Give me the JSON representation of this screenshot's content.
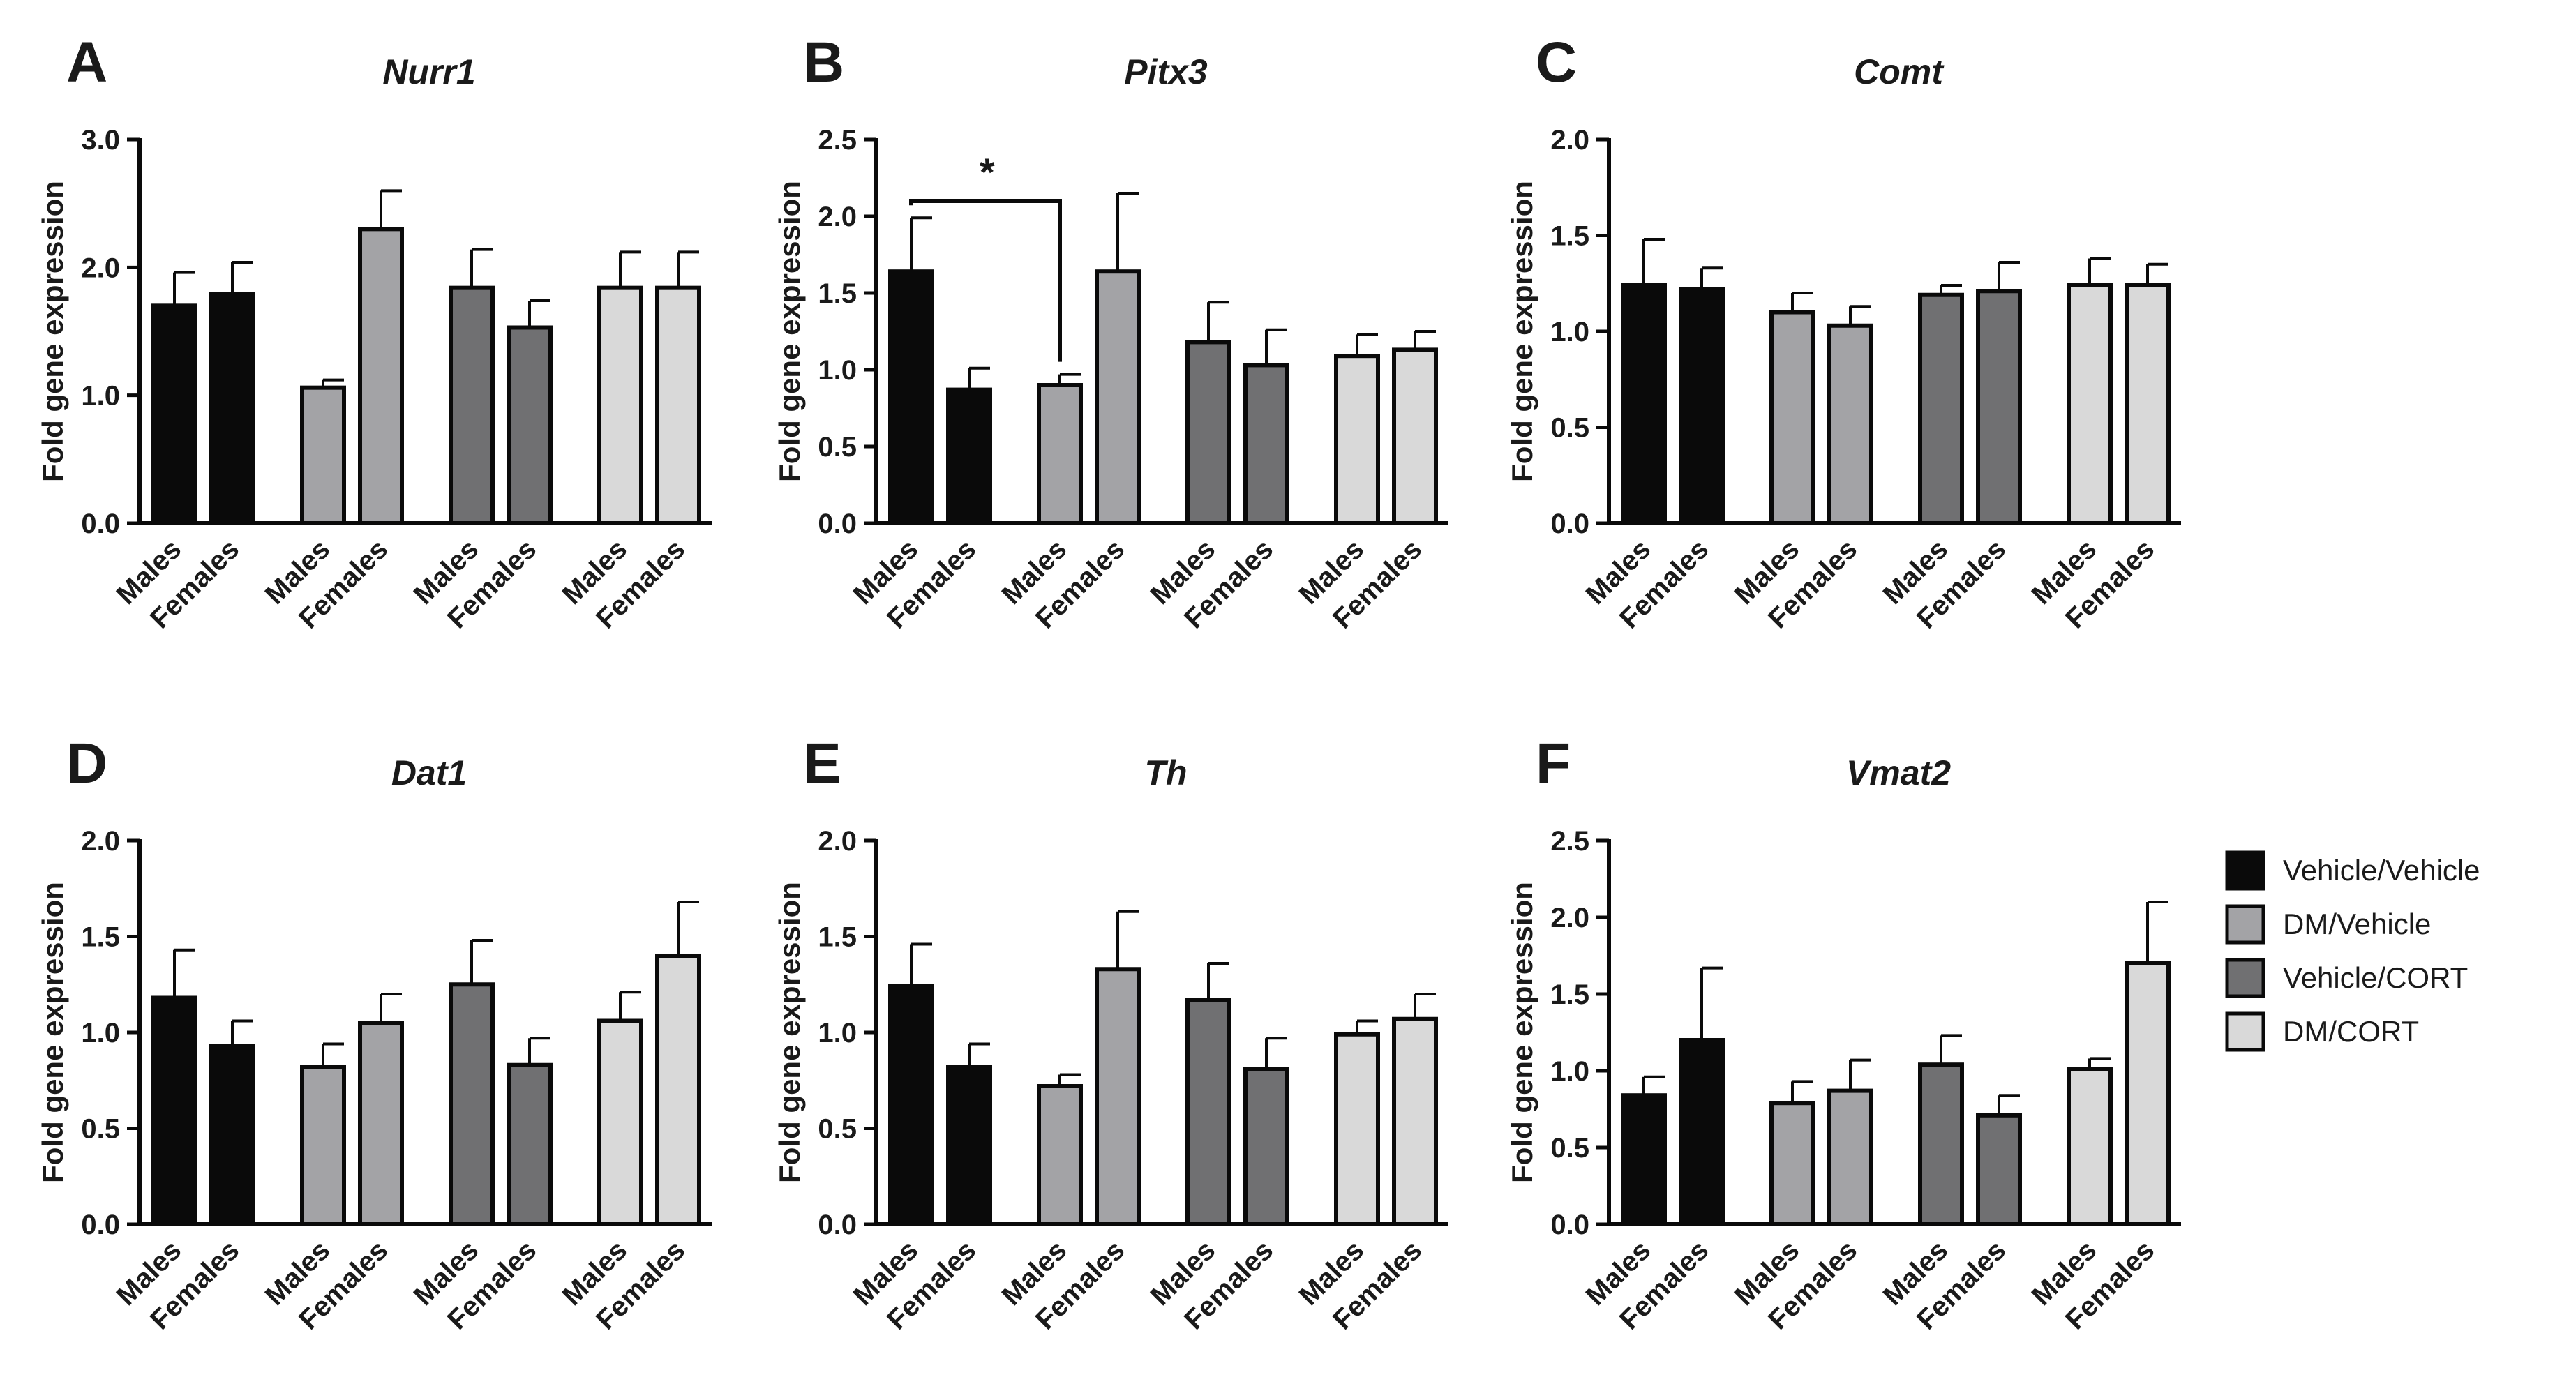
{
  "colors": {
    "Vehicle/Vehicle": "#0a0a0a",
    "DM/Vehicle": "#a3a3a6",
    "Vehicle/CORT": "#707072",
    "DM/CORT": "#d9d9d9"
  },
  "legend": [
    {
      "label": "Vehicle/Vehicle",
      "color": "#0a0a0a"
    },
    {
      "label": "DM/Vehicle",
      "color": "#a3a3a6"
    },
    {
      "label": "Vehicle/CORT",
      "color": "#707072"
    },
    {
      "label": "DM/CORT",
      "color": "#d9d9d9"
    }
  ],
  "chart_data": [
    {
      "type": "bar",
      "letter": "A",
      "title": "Nurr1",
      "ylabel": "Fold gene expression",
      "ylim": [
        0,
        3
      ],
      "yticks": [
        0,
        1,
        2,
        3
      ],
      "ytick_labels": [
        "0.0",
        "1.0",
        "2.0",
        "3.0"
      ],
      "categories": [
        "Males",
        "Females",
        "Males",
        "Females",
        "Males",
        "Females",
        "Males",
        "Females"
      ],
      "groups": [
        "Vehicle/Vehicle",
        "Vehicle/Vehicle",
        "DM/Vehicle",
        "DM/Vehicle",
        "Vehicle/CORT",
        "Vehicle/CORT",
        "DM/CORT",
        "DM/CORT"
      ],
      "values": [
        1.7,
        1.79,
        1.06,
        2.3,
        1.84,
        1.53,
        1.84,
        1.84
      ],
      "errors": [
        0.26,
        0.25,
        0.06,
        0.3,
        0.3,
        0.21,
        0.28,
        0.28
      ],
      "annotations": []
    },
    {
      "type": "bar",
      "letter": "B",
      "title": "Pitx3",
      "ylabel": "Fold gene expression",
      "ylim": [
        0,
        2.5
      ],
      "yticks": [
        0,
        0.5,
        1,
        1.5,
        2,
        2.5
      ],
      "ytick_labels": [
        "0.0",
        "0.5",
        "1.0",
        "1.5",
        "2.0",
        "2.5"
      ],
      "categories": [
        "Males",
        "Females",
        "Males",
        "Females",
        "Males",
        "Females",
        "Males",
        "Females"
      ],
      "groups": [
        "Vehicle/Vehicle",
        "Vehicle/Vehicle",
        "DM/Vehicle",
        "DM/Vehicle",
        "Vehicle/CORT",
        "Vehicle/CORT",
        "DM/CORT",
        "DM/CORT"
      ],
      "values": [
        1.64,
        0.87,
        0.9,
        1.64,
        1.18,
        1.03,
        1.09,
        1.13
      ],
      "errors": [
        0.35,
        0.14,
        0.07,
        0.51,
        0.26,
        0.23,
        0.14,
        0.12
      ],
      "annotations": [
        {
          "type": "bracket",
          "from": 0,
          "to": 2,
          "label": "*",
          "y": 2.1
        }
      ]
    },
    {
      "type": "bar",
      "letter": "C",
      "title": "Comt",
      "ylabel": "Fold gene expression",
      "ylim": [
        0,
        2
      ],
      "yticks": [
        0,
        0.5,
        1,
        1.5,
        2
      ],
      "ytick_labels": [
        "0.0",
        "0.5",
        "1.0",
        "1.5",
        "2.0"
      ],
      "categories": [
        "Males",
        "Females",
        "Males",
        "Females",
        "Males",
        "Females",
        "Males",
        "Females"
      ],
      "groups": [
        "Vehicle/Vehicle",
        "Vehicle/Vehicle",
        "DM/Vehicle",
        "DM/Vehicle",
        "Vehicle/CORT",
        "Vehicle/CORT",
        "DM/CORT",
        "DM/CORT"
      ],
      "values": [
        1.24,
        1.22,
        1.1,
        1.03,
        1.19,
        1.21,
        1.24,
        1.24
      ],
      "errors": [
        0.24,
        0.11,
        0.1,
        0.1,
        0.05,
        0.15,
        0.14,
        0.11
      ],
      "annotations": []
    },
    {
      "type": "bar",
      "letter": "D",
      "title": "Dat1",
      "ylabel": "Fold gene expression",
      "ylim": [
        0,
        2
      ],
      "yticks": [
        0,
        0.5,
        1,
        1.5,
        2
      ],
      "ytick_labels": [
        "0.0",
        "0.5",
        "1.0",
        "1.5",
        "2.0"
      ],
      "categories": [
        "Males",
        "Females",
        "Males",
        "Females",
        "Males",
        "Females",
        "Males",
        "Females"
      ],
      "groups": [
        "Vehicle/Vehicle",
        "Vehicle/Vehicle",
        "DM/Vehicle",
        "DM/Vehicle",
        "Vehicle/CORT",
        "Vehicle/CORT",
        "DM/CORT",
        "DM/CORT"
      ],
      "values": [
        1.18,
        0.93,
        0.82,
        1.05,
        1.25,
        0.83,
        1.06,
        1.4
      ],
      "errors": [
        0.25,
        0.13,
        0.12,
        0.15,
        0.23,
        0.14,
        0.15,
        0.28
      ],
      "annotations": []
    },
    {
      "type": "bar",
      "letter": "E",
      "title": "Th",
      "ylabel": "Fold gene expression",
      "ylim": [
        0,
        2
      ],
      "yticks": [
        0,
        0.5,
        1,
        1.5,
        2
      ],
      "ytick_labels": [
        "0.0",
        "0.5",
        "1.0",
        "1.5",
        "2.0"
      ],
      "categories": [
        "Males",
        "Females",
        "Males",
        "Females",
        "Males",
        "Females",
        "Males",
        "Females"
      ],
      "groups": [
        "Vehicle/Vehicle",
        "Vehicle/Vehicle",
        "DM/Vehicle",
        "DM/Vehicle",
        "Vehicle/CORT",
        "Vehicle/CORT",
        "DM/CORT",
        "DM/CORT"
      ],
      "values": [
        1.24,
        0.82,
        0.72,
        1.33,
        1.17,
        0.81,
        0.99,
        1.07
      ],
      "errors": [
        0.22,
        0.12,
        0.06,
        0.3,
        0.19,
        0.16,
        0.07,
        0.13
      ],
      "annotations": []
    },
    {
      "type": "bar",
      "letter": "F",
      "title": "Vmat2",
      "ylabel": "Fold gene expression",
      "ylim": [
        0,
        2.5
      ],
      "yticks": [
        0,
        0.5,
        1,
        1.5,
        2,
        2.5
      ],
      "ytick_labels": [
        "0.0",
        "0.5",
        "1.0",
        "1.5",
        "2.0",
        "2.5"
      ],
      "categories": [
        "Males",
        "Females",
        "Males",
        "Females",
        "Males",
        "Females",
        "Males",
        "Females"
      ],
      "groups": [
        "Vehicle/Vehicle",
        "Vehicle/Vehicle",
        "DM/Vehicle",
        "DM/Vehicle",
        "Vehicle/CORT",
        "Vehicle/CORT",
        "DM/CORT",
        "DM/CORT"
      ],
      "values": [
        0.84,
        1.2,
        0.79,
        0.87,
        1.04,
        0.71,
        1.01,
        1.7
      ],
      "errors": [
        0.12,
        0.47,
        0.14,
        0.2,
        0.19,
        0.13,
        0.07,
        0.4
      ],
      "annotations": []
    }
  ]
}
